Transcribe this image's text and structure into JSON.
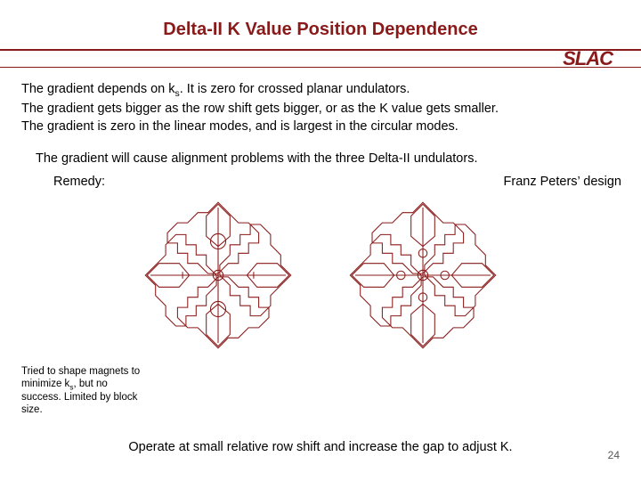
{
  "title": {
    "text": "Delta-II K Value Position Dependence",
    "fontsize": 20,
    "color": "#8a1a1a"
  },
  "branding": {
    "logo_text": "SLAC",
    "logo_color": "#8a1a1a",
    "logo_fontsize": 22
  },
  "rule": {
    "color": "#8a1a1a"
  },
  "paragraph": {
    "fontsize": 14.5,
    "color": "#000000",
    "line1a": "The gradient depends on k",
    "line1_sub": "s",
    "line1b": ".  It is zero for crossed planar undulators.",
    "line2": "The gradient gets bigger as the row shift gets bigger, or as the K value gets smaller.",
    "line3": "The gradient is zero in the linear modes, and is largest in the circular modes."
  },
  "summary": {
    "text": "The gradient will cause alignment problems with the three Delta-II undulators.",
    "fontsize": 14.5
  },
  "labels": {
    "left": "Remedy:",
    "right": "Franz Peters’ design",
    "fontsize": 14.5
  },
  "note": {
    "fontsize": 11.5,
    "line1a": "Tried to shape magnets to minimize k",
    "line1_sub": "s",
    "line1b": ", but no success. Limited by block size."
  },
  "bottom": {
    "text": "Operate at small relative row shift and increase the gap to adjust K.",
    "fontsize": 14.5
  },
  "page_number": {
    "text": "24",
    "fontsize": 12,
    "color": "#555"
  },
  "diagram": {
    "stroke": "#8a1a1a",
    "stroke_width": 1.1,
    "size": 190,
    "variant_a_has_center_parts": true,
    "variant_b_has_center_parts": false
  }
}
